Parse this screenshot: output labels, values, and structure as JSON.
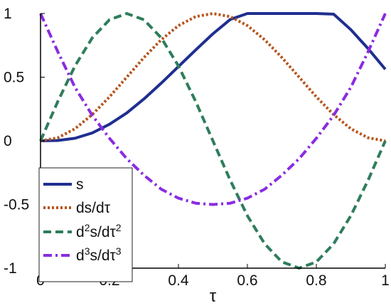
{
  "chart_data": {
    "type": "line",
    "title": "",
    "xlabel": "τ",
    "ylabel": "",
    "xlim": [
      0,
      1
    ],
    "ylim": [
      -1,
      1
    ],
    "xticks": [
      0,
      0.2,
      0.4,
      0.6,
      0.8,
      1
    ],
    "xtick_labels": [
      "0",
      "0.2",
      "0.4",
      "0.6",
      "0.8",
      "1"
    ],
    "yticks": [
      -1,
      -0.5,
      0,
      0.5,
      1
    ],
    "ytick_labels": [
      "-1",
      "-0.5",
      "0",
      "0.5",
      "1"
    ],
    "grid": false,
    "legend_position": "bottom-left",
    "x": [
      0,
      0.05,
      0.1,
      0.15,
      0.2,
      0.25,
      0.3,
      0.35,
      0.4,
      0.45,
      0.5,
      0.55,
      0.6,
      0.65,
      0.7,
      0.75,
      0.8,
      0.85,
      0.9,
      0.95,
      1
    ],
    "series": [
      {
        "name": "s",
        "legend_label": "s",
        "color": "#1f2f8f",
        "style": "solid",
        "values": [
          0,
          0.003,
          0.02,
          0.062,
          0.13,
          0.219,
          0.329,
          0.453,
          0.583,
          0.714,
          0.841,
          0.953,
          1.044,
          1.108,
          1.139,
          1.131,
          1.083,
          0.995,
          0.873,
          0.724,
          0.562
        ]
      },
      {
        "name": "ds/dτ",
        "legend_label": "ds/dτ",
        "color": "#b5541b",
        "style": "dotted",
        "values": [
          0,
          0.024,
          0.095,
          0.206,
          0.345,
          0.5,
          0.655,
          0.794,
          0.905,
          0.976,
          1,
          0.976,
          0.905,
          0.794,
          0.655,
          0.5,
          0.345,
          0.206,
          0.095,
          0.024,
          0
        ]
      },
      {
        "name": "d²s/dτ²",
        "legend_label": {
          "pre": "d",
          "sup1": "2",
          "mid": "s/dτ",
          "sup2": "2"
        },
        "color": "#2e7d5b",
        "style": "dashed",
        "values": [
          0,
          0.309,
          0.588,
          0.809,
          0.951,
          1,
          0.951,
          0.809,
          0.588,
          0.309,
          0,
          -0.309,
          -0.588,
          -0.809,
          -0.951,
          -1,
          -0.951,
          -0.809,
          -0.588,
          -0.309,
          0
        ]
      },
      {
        "name": "d³s/dτ³",
        "legend_label": {
          "pre": "d",
          "sup1": "3",
          "mid": "s/dτ",
          "sup2": "3"
        },
        "color": "#8a2be2",
        "style": "dashdot",
        "values": [
          1,
          0.7,
          0.42,
          0.2,
          0.02,
          -0.14,
          -0.27,
          -0.38,
          -0.45,
          -0.49,
          -0.5,
          -0.49,
          -0.45,
          -0.38,
          -0.27,
          -0.14,
          0.02,
          0.2,
          0.42,
          0.7,
          1
        ]
      }
    ]
  }
}
